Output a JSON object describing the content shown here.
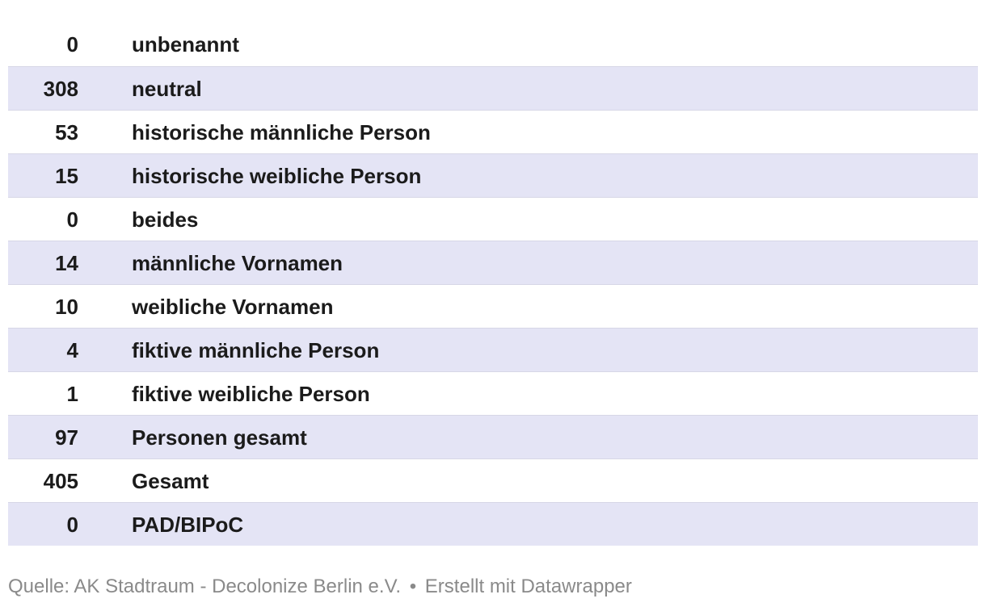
{
  "chart_data": {
    "type": "table",
    "title": "",
    "categories": [
      "unbenannt",
      "neutral",
      "historische männliche Person",
      "historische weibliche Person",
      "beides",
      "männliche Vornamen",
      "weibliche Vornamen",
      "fiktive männliche Person",
      "fiktive weibliche Person",
      "Personen gesamt",
      "Gesamt",
      "PAD/BIPoC"
    ],
    "values": [
      0,
      308,
      53,
      15,
      0,
      14,
      10,
      4,
      1,
      97,
      405,
      0
    ],
    "layout_hints": {
      "striped_rows": true,
      "stripe_pattern": "even rows white, odd rows lavender",
      "value_column_alignment": "right",
      "label_column_alignment": "left",
      "grid": "horizontal row borders only"
    }
  },
  "footer": {
    "source_prefix": "Quelle:",
    "source_text": "AK Stadtraum - Decolonize Berlin e.V.",
    "separator": "•",
    "attribution": "Erstellt mit Datawrapper"
  },
  "colors": {
    "stripe": "#e4e4f5",
    "row_border": "#d7d7e6",
    "text": "#1b1b1b",
    "footer_text": "#8a8a8a"
  }
}
